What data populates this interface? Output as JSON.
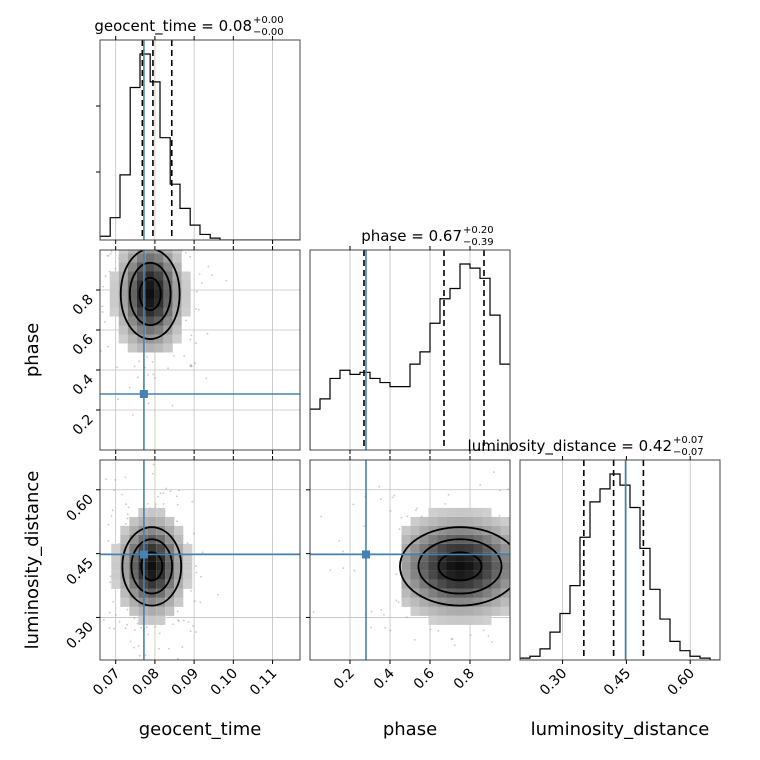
{
  "chart_data": {
    "type": "corner",
    "parameters": [
      "geocent_time",
      "phase",
      "luminosity_distance"
    ],
    "truths": {
      "geocent_time": 0.0772,
      "phase": 0.28,
      "luminosity_distance": 0.448
    },
    "truth_color": "#4682b4",
    "grid": true,
    "titles": [
      {
        "param": "geocent_time",
        "base": "geocent_time = 0.08",
        "plus": "+0.00",
        "minus": "−0.00"
      },
      {
        "param": "phase",
        "base": "phase = 0.67",
        "plus": "+0.20",
        "minus": "−0.39"
      },
      {
        "param": "luminosity_distance",
        "base": "luminosity_distance = 0.42",
        "plus": "+0.07",
        "minus": "−0.07"
      }
    ],
    "axes": {
      "geocent_time": {
        "label": "geocent_time",
        "range": [
          0.066,
          0.117
        ],
        "ticks": [
          0.07,
          0.08,
          0.09,
          0.1,
          0.11
        ],
        "tick_labels": [
          "0.07",
          "0.08",
          "0.09",
          "0.10",
          "0.11"
        ]
      },
      "phase": {
        "label": "phase",
        "range": [
          0.0,
          1.0
        ],
        "ticks": [
          0.2,
          0.4,
          0.6,
          0.8
        ],
        "tick_labels": [
          "0.2",
          "0.4",
          "0.6",
          "0.8"
        ]
      },
      "luminosity_distance": {
        "label": "luminosity_distance",
        "range": [
          0.2,
          0.67
        ],
        "ticks": [
          0.3,
          0.45,
          0.6
        ],
        "tick_labels": [
          "0.30",
          "0.45",
          "0.60"
        ]
      }
    },
    "histograms": {
      "geocent_time": {
        "bin_edges": [
          0.066,
          0.0686,
          0.0711,
          0.0737,
          0.0762,
          0.0788,
          0.0813,
          0.0839,
          0.0864,
          0.089,
          0.0915,
          0.0941,
          0.0966,
          0.0992,
          0.1017,
          0.1043,
          0.1068,
          0.1094,
          0.1119,
          0.1145,
          0.117
        ],
        "counts": [
          0.02,
          0.12,
          0.35,
          0.82,
          1.0,
          0.85,
          0.55,
          0.3,
          0.17,
          0.08,
          0.03,
          0.01,
          0,
          0,
          0,
          0,
          0,
          0,
          0,
          0
        ],
        "quantiles": [
          0.0768,
          0.0795,
          0.0843
        ]
      },
      "phase": {
        "bin_edges": [
          0.0,
          0.05,
          0.1,
          0.15,
          0.2,
          0.25,
          0.3,
          0.35,
          0.4,
          0.45,
          0.5,
          0.55,
          0.6,
          0.65,
          0.7,
          0.75,
          0.8,
          0.85,
          0.9,
          0.95,
          1.0
        ],
        "counts": [
          0.2,
          0.25,
          0.35,
          0.39,
          0.37,
          0.38,
          0.35,
          0.33,
          0.31,
          0.31,
          0.42,
          0.48,
          0.62,
          0.74,
          0.79,
          0.91,
          0.89,
          0.84,
          0.66,
          0.42
        ],
        "quantiles": [
          0.27,
          0.67,
          0.87
        ]
      },
      "luminosity_distance": {
        "bin_edges": [
          0.2,
          0.2235,
          0.247,
          0.2705,
          0.294,
          0.3175,
          0.341,
          0.3645,
          0.388,
          0.4115,
          0.435,
          0.4585,
          0.482,
          0.5055,
          0.529,
          0.5525,
          0.576,
          0.5995,
          0.623,
          0.6465,
          0.67
        ],
        "counts": [
          0.01,
          0.02,
          0.06,
          0.15,
          0.25,
          0.4,
          0.66,
          0.85,
          0.92,
          1.0,
          0.94,
          0.82,
          0.6,
          0.38,
          0.22,
          0.1,
          0.05,
          0.02,
          0.01,
          0.0
        ],
        "quantiles": [
          0.35,
          0.42,
          0.49
        ]
      }
    },
    "density_peaks": [
      {
        "x": "geocent_time",
        "y": "phase",
        "center": [
          0.0788,
          0.78
        ],
        "spread": [
          0.0035,
          0.11
        ]
      },
      {
        "x": "geocent_time",
        "y": "luminosity_distance",
        "center": [
          0.0792,
          0.42
        ],
        "spread": [
          0.0035,
          0.045
        ]
      },
      {
        "x": "phase",
        "y": "luminosity_distance",
        "center": [
          0.75,
          0.42
        ],
        "spread": [
          0.14,
          0.045
        ]
      }
    ]
  }
}
